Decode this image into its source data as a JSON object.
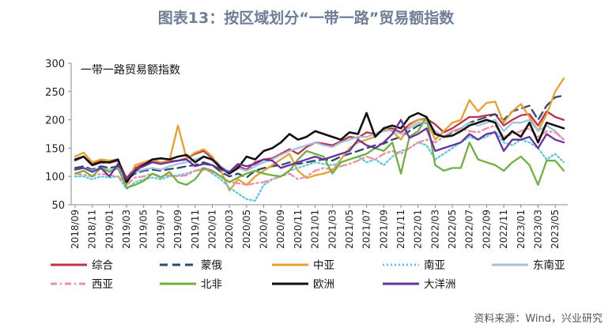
{
  "figure_title": "图表13：按区域划分“一带一路”贸易额指数",
  "source": "资料来源：Wind，兴业研究",
  "chart_data": {
    "type": "line",
    "title": "一带一路贸易额指数",
    "xlabel": "",
    "ylabel": "",
    "ylim": [
      50,
      300
    ],
    "yticks": [
      50,
      100,
      150,
      200,
      250,
      300
    ],
    "grid": false,
    "legend_position": "bottom",
    "categories": [
      "2018/09",
      "2018/10",
      "2018/11",
      "2018/12",
      "2019/01",
      "2019/02",
      "2019/03",
      "2019/04",
      "2019/05",
      "2019/06",
      "2019/07",
      "2019/08",
      "2019/09",
      "2019/10",
      "2019/11",
      "2019/12",
      "2020/01",
      "2020/02",
      "2020/03",
      "2020/04",
      "2020/05",
      "2020/06",
      "2020/07",
      "2020/08",
      "2020/09",
      "2020/10",
      "2020/11",
      "2020/12",
      "2021/01",
      "2021/02",
      "2021/03",
      "2021/04",
      "2021/05",
      "2021/06",
      "2021/07",
      "2021/08",
      "2021/09",
      "2021/10",
      "2021/11",
      "2021/12",
      "2022/01",
      "2022/02",
      "2022/03",
      "2022/04",
      "2022/05",
      "2022/06",
      "2022/07",
      "2022/08",
      "2022/09",
      "2022/10",
      "2022/11",
      "2022/12",
      "2023/01",
      "2023/02",
      "2023/03",
      "2023/04",
      "2023/05",
      "2023/06"
    ],
    "tick_labels": [
      "2018/09",
      "2018/11",
      "2019/01",
      "2019/03",
      "2019/05",
      "2019/07",
      "2019/09",
      "2019/11",
      "2020/01",
      "2020/03",
      "2020/05",
      "2020/07",
      "2020/09",
      "2020/11",
      "2021/01",
      "2021/03",
      "2021/05",
      "2021/07",
      "2021/09",
      "2021/11",
      "2022/01",
      "2022/03",
      "2022/05",
      "2022/07",
      "2022/09",
      "2022/11",
      "2023/01",
      "2023/03",
      "2023/05"
    ],
    "series": [
      {
        "name": "综合",
        "color": "#c0304a",
        "dash": "solid",
        "values": [
          128,
          135,
          122,
          128,
          124,
          128,
          97,
          115,
          122,
          126,
          122,
          127,
          128,
          132,
          140,
          145,
          132,
          118,
          107,
          118,
          112,
          125,
          130,
          132,
          140,
          148,
          140,
          152,
          160,
          158,
          155,
          162,
          170,
          168,
          178,
          175,
          182,
          185,
          178,
          192,
          200,
          202,
          192,
          178,
          185,
          195,
          205,
          205,
          208,
          210,
          190,
          200,
          208,
          210,
          190,
          215,
          205,
          200
        ]
      },
      {
        "name": "蒙俄",
        "color": "#2f4a6b",
        "dash": "10,6",
        "values": [
          115,
          118,
          112,
          118,
          115,
          118,
          95,
          105,
          110,
          112,
          110,
          113,
          115,
          118,
          120,
          125,
          120,
          108,
          100,
          105,
          98,
          110,
          115,
          118,
          120,
          125,
          122,
          125,
          128,
          130,
          128,
          135,
          140,
          145,
          150,
          155,
          158,
          165,
          170,
          180,
          190,
          195,
          175,
          170,
          178,
          185,
          195,
          200,
          205,
          210,
          200,
          215,
          220,
          225,
          200,
          225,
          240,
          243
        ]
      },
      {
        "name": "中亚",
        "color": "#e8a030",
        "dash": "solid",
        "values": [
          135,
          142,
          125,
          130,
          128,
          130,
          85,
          120,
          125,
          130,
          125,
          128,
          190,
          132,
          142,
          148,
          135,
          110,
          75,
          95,
          85,
          100,
          110,
          120,
          130,
          140,
          110,
          97,
          102,
          105,
          110,
          130,
          150,
          160,
          165,
          170,
          185,
          180,
          165,
          190,
          200,
          200,
          165,
          180,
          195,
          200,
          235,
          215,
          230,
          232,
          195,
          215,
          228,
          205,
          180,
          210,
          250,
          273
        ]
      },
      {
        "name": "南亚",
        "color": "#5fc8e0",
        "dash": "2,3",
        "values": [
          100,
          100,
          95,
          100,
          98,
          100,
          78,
          90,
          95,
          98,
          95,
          100,
          102,
          105,
          110,
          115,
          105,
          95,
          80,
          70,
          60,
          57,
          85,
          95,
          100,
          110,
          115,
          120,
          125,
          122,
          120,
          125,
          130,
          135,
          125,
          130,
          120,
          135,
          145,
          150,
          160,
          155,
          130,
          140,
          150,
          160,
          170,
          165,
          170,
          180,
          160,
          155,
          165,
          160,
          150,
          130,
          140,
          125
        ]
      },
      {
        "name": "东南亚",
        "color": "#a0c4e0",
        "dash": "solid",
        "values": [
          112,
          115,
          110,
          115,
          112,
          113,
          92,
          108,
          112,
          115,
          112,
          118,
          122,
          125,
          130,
          135,
          128,
          118,
          108,
          115,
          110,
          118,
          125,
          130,
          138,
          145,
          150,
          155,
          160,
          155,
          152,
          160,
          165,
          170,
          170,
          175,
          180,
          182,
          175,
          185,
          195,
          195,
          180,
          170,
          180,
          185,
          195,
          190,
          195,
          200,
          180,
          195,
          195,
          200,
          180,
          190,
          180,
          165
        ]
      },
      {
        "name": "西亚",
        "color": "#f08da0",
        "dash": "8,4,2,4",
        "values": [
          105,
          103,
          100,
          105,
          102,
          100,
          85,
          98,
          100,
          105,
          100,
          102,
          100,
          102,
          110,
          112,
          108,
          100,
          90,
          88,
          85,
          88,
          90,
          95,
          100,
          105,
          95,
          100,
          110,
          115,
          112,
          118,
          122,
          128,
          135,
          130,
          140,
          145,
          140,
          150,
          160,
          165,
          160,
          170,
          180,
          185,
          180,
          178,
          185,
          190,
          170,
          175,
          180,
          185,
          170,
          180,
          178,
          165
        ]
      },
      {
        "name": "北非",
        "color": "#70b040",
        "dash": "solid",
        "values": [
          105,
          110,
          100,
          115,
          108,
          115,
          80,
          85,
          92,
          105,
          98,
          108,
          90,
          85,
          95,
          115,
          110,
          100,
          90,
          98,
          105,
          110,
          105,
          102,
          100,
          110,
          130,
          145,
          140,
          135,
          105,
          125,
          130,
          135,
          140,
          150,
          145,
          160,
          105,
          170,
          180,
          205,
          120,
          110,
          115,
          115,
          160,
          130,
          125,
          120,
          110,
          125,
          135,
          120,
          85,
          128,
          128,
          110
        ]
      },
      {
        "name": "欧洲",
        "color": "#111111",
        "dash": "solid",
        "values": [
          130,
          135,
          120,
          125,
          125,
          130,
          90,
          110,
          120,
          130,
          132,
          130,
          135,
          138,
          125,
          135,
          130,
          115,
          105,
          115,
          135,
          130,
          145,
          150,
          160,
          175,
          165,
          170,
          180,
          175,
          170,
          165,
          178,
          175,
          212,
          170,
          185,
          190,
          185,
          205,
          212,
          205,
          175,
          170,
          172,
          180,
          190,
          195,
          200,
          195,
          165,
          180,
          170,
          195,
          160,
          195,
          190,
          185
        ]
      },
      {
        "name": "大洋洲",
        "color": "#6a30a0",
        "dash": "solid",
        "values": [
          112,
          115,
          108,
          115,
          100,
          122,
          95,
          112,
          118,
          125,
          122,
          125,
          128,
          130,
          118,
          122,
          120,
          112,
          108,
          122,
          118,
          122,
          130,
          128,
          115,
          120,
          125,
          130,
          135,
          130,
          135,
          140,
          145,
          165,
          155,
          150,
          160,
          175,
          200,
          168,
          175,
          185,
          145,
          150,
          155,
          160,
          175,
          165,
          175,
          178,
          145,
          165,
          165,
          170,
          150,
          175,
          165,
          160
        ]
      }
    ]
  }
}
